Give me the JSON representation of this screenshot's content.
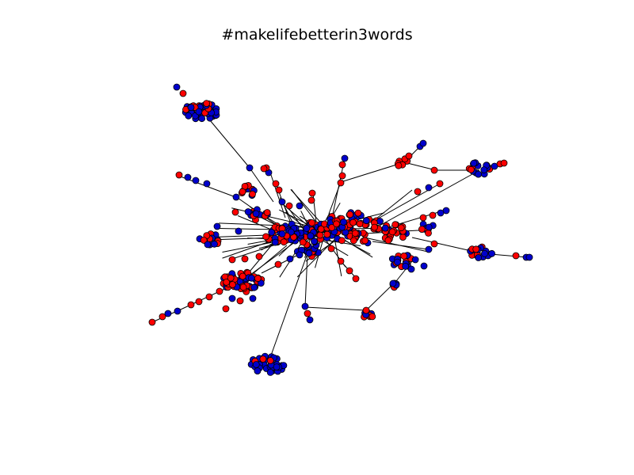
{
  "figure": {
    "title": "#makelifebetterin3words"
  },
  "node_colors": {
    "red": "#ff0000",
    "blue": "#0000cc",
    "edge": "#000000",
    "outline": "#000000"
  }
}
